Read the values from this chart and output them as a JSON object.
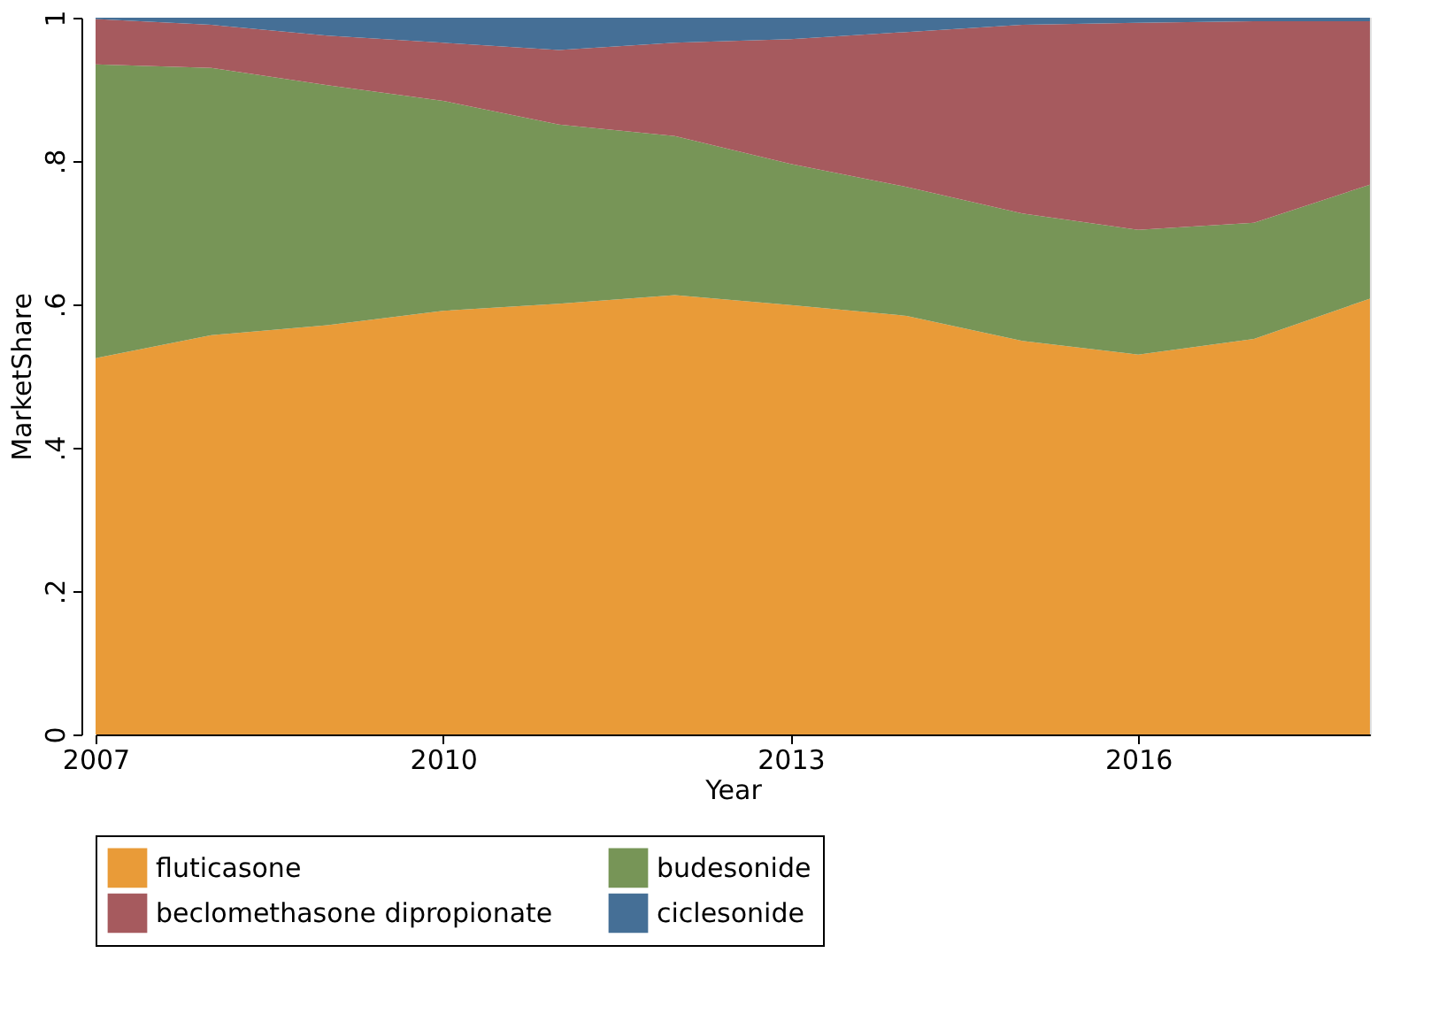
{
  "chart_data": {
    "type": "area",
    "stacked": true,
    "xlabel": "Year",
    "ylabel": "MarketShare",
    "x": [
      2007,
      2008,
      2009,
      2010,
      2011,
      2012,
      2013,
      2014,
      2015,
      2016,
      2017,
      2018
    ],
    "series": [
      {
        "name": "fluticasone",
        "color": "#e99b38",
        "values": [
          0.525,
          0.557,
          0.571,
          0.591,
          0.601,
          0.613,
          0.599,
          0.584,
          0.549,
          0.53,
          0.552,
          0.608
        ]
      },
      {
        "name": "budesonide",
        "color": "#779557",
        "values": [
          0.41,
          0.373,
          0.335,
          0.293,
          0.25,
          0.222,
          0.197,
          0.18,
          0.178,
          0.174,
          0.162,
          0.159
        ]
      },
      {
        "name": "beclomethasone dipropionate",
        "color": "#a65a5e",
        "values": [
          0.063,
          0.06,
          0.069,
          0.081,
          0.104,
          0.13,
          0.174,
          0.216,
          0.263,
          0.289,
          0.281,
          0.228
        ]
      },
      {
        "name": "ciclesonide",
        "color": "#456f96",
        "values": [
          0.002,
          0.01,
          0.025,
          0.035,
          0.045,
          0.035,
          0.03,
          0.02,
          0.01,
          0.007,
          0.005,
          0.005
        ]
      }
    ],
    "xlim": [
      2007,
      2018
    ],
    "xticks": [
      2007,
      2010,
      2013,
      2016
    ],
    "ylim": [
      0,
      1
    ],
    "yticks": [
      0,
      {
        "value": 0.2,
        "label": ".2"
      },
      {
        "value": 0.4,
        "label": ".4"
      },
      {
        "value": 0.6,
        "label": ".6"
      },
      {
        "value": 0.8,
        "label": ".8"
      },
      1
    ],
    "grid": false,
    "legend": "bottom"
  }
}
